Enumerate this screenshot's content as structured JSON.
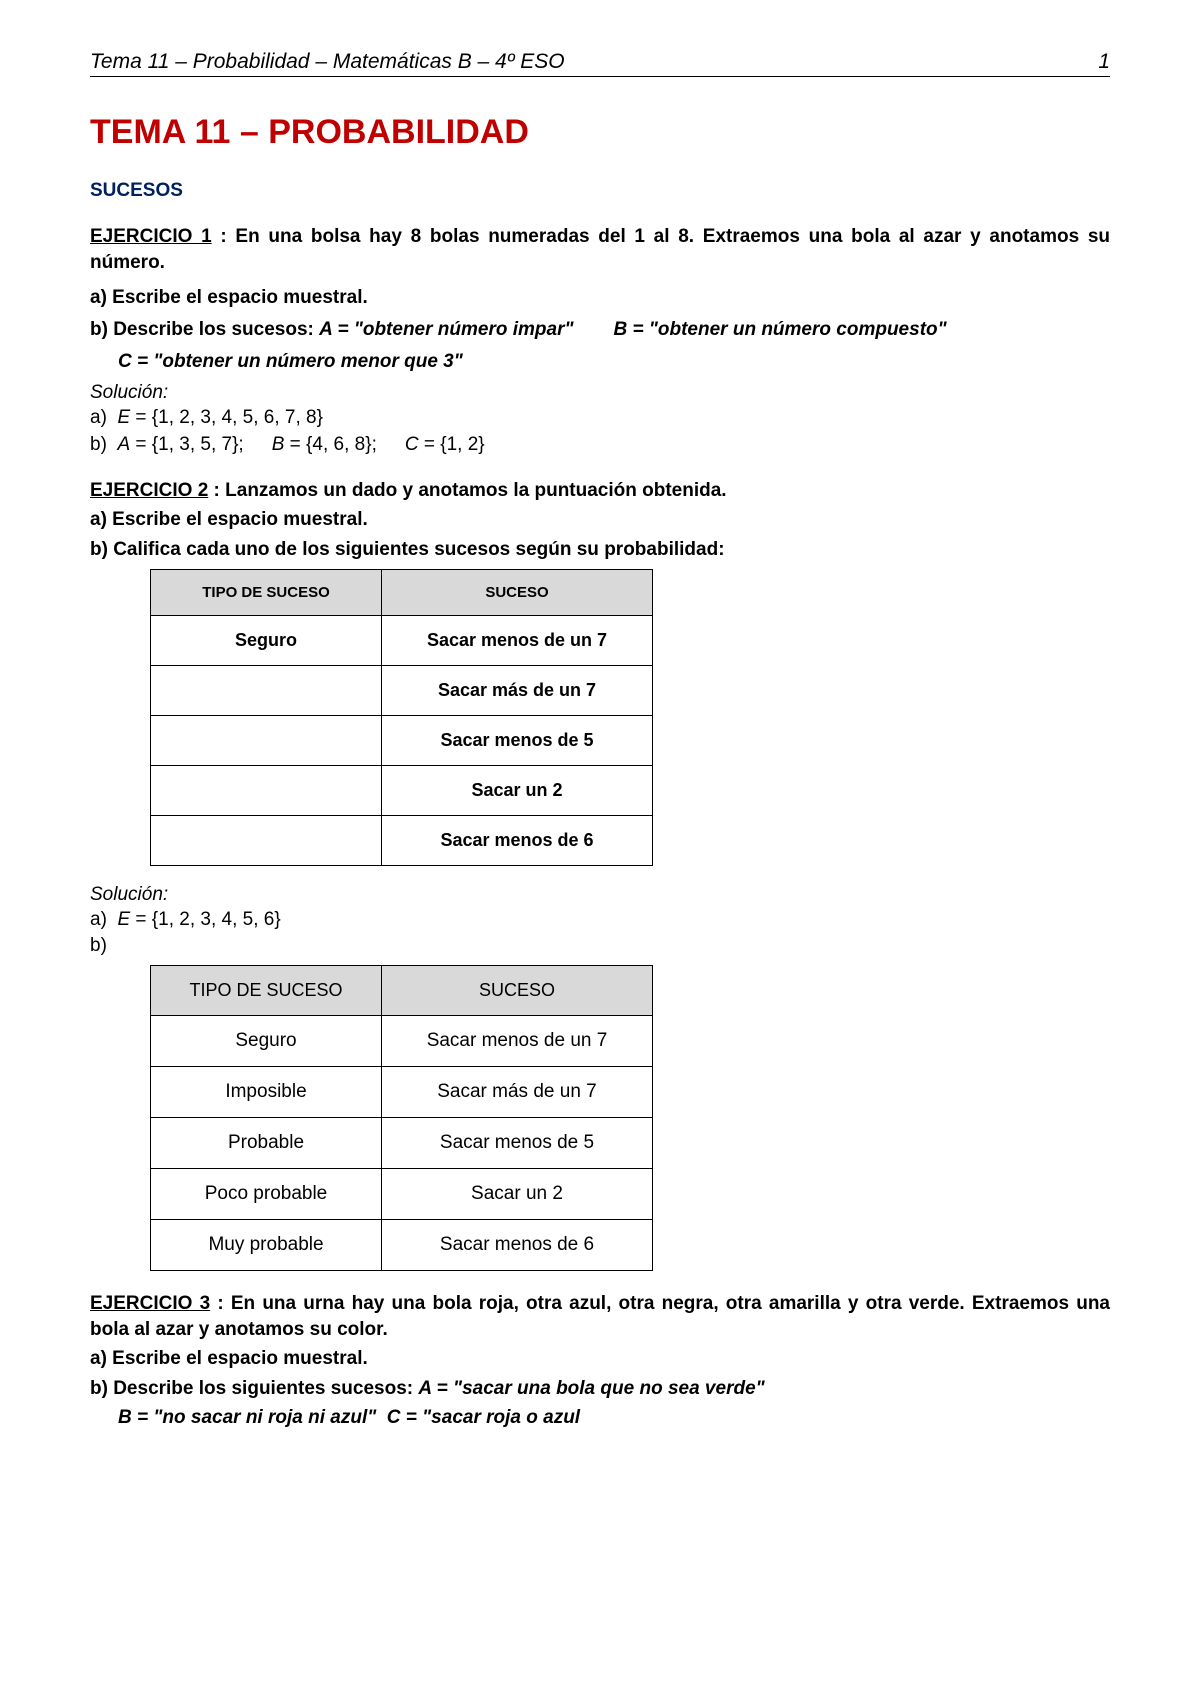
{
  "header": {
    "left": "Tema 11 – Probabilidad – Matemáticas B – 4º ESO",
    "page_number": "1"
  },
  "title": "TEMA 11 – PROBABILIDAD",
  "section": "SUCESOS",
  "colors": {
    "title": "#c00000",
    "section": "#002060",
    "table_header_bg": "#d9d9d9",
    "border": "#000000",
    "background": "#ffffff"
  },
  "ej1": {
    "label": "EJERCICIO 1",
    "prompt": " : En una bolsa hay 8 bolas numeradas del 1 al 8. Extraemos una bola al azar y anotamos su número.",
    "a": "a)  Escribe el espacio muestral.",
    "b_prefix": "b)  Describe los sucesos: ",
    "b_A": "A = \"obtener número impar\"",
    "b_B": "B = \"obtener un número compuesto\"",
    "b_C": "C = \"obtener un número menor que 3\"",
    "sol_label": "Solución:",
    "sol_a": "a)  E = {1, 2, 3, 4, 5, 6, 7, 8}",
    "sol_b": "b)  A = {1, 3, 5, 7};      B = {4, 6, 8};     C = {1, 2}"
  },
  "ej2": {
    "label": "EJERCICIO 2",
    "prompt": " : Lanzamos un dado y anotamos la puntuación obtenida.",
    "a": "a)  Escribe el espacio muestral.",
    "b": "b)  Califica cada uno de los siguientes sucesos según su probabilidad:",
    "table1": {
      "headers": [
        "TIPO DE SUCESO",
        "SUCESO"
      ],
      "rows": [
        [
          "Seguro",
          "Sacar menos de un 7"
        ],
        [
          "",
          "Sacar más de un 7"
        ],
        [
          "",
          "Sacar menos de 5"
        ],
        [
          "",
          "Sacar un 2"
        ],
        [
          "",
          "Sacar menos de 6"
        ]
      ]
    },
    "sol_label": "Solución:",
    "sol_a": "a)  E = {1, 2, 3, 4, 5, 6}",
    "sol_b_prefix": "b)",
    "table2": {
      "headers": [
        "TIPO DE SUCESO",
        "SUCESO"
      ],
      "rows": [
        [
          "Seguro",
          "Sacar menos de un 7"
        ],
        [
          "Imposible",
          "Sacar más de un 7"
        ],
        [
          "Probable",
          "Sacar menos de 5"
        ],
        [
          "Poco probable",
          "Sacar un 2"
        ],
        [
          "Muy probable",
          "Sacar menos de 6"
        ]
      ]
    }
  },
  "ej3": {
    "label": "EJERCICIO 3",
    "prompt": " : En una urna hay una bola roja, otra azul, otra negra, otra amarilla y otra verde. Extraemos una bola al azar y anotamos su color.",
    "a": "a)  Escribe el espacio muestral.",
    "b_prefix": "b)  Describe los siguientes sucesos: ",
    "b_A": "A = \"sacar una bola que no sea verde\"",
    "b_B": "B = \"no sacar ni roja ni azul\"",
    "b_C": "C = \"sacar roja o azul"
  }
}
